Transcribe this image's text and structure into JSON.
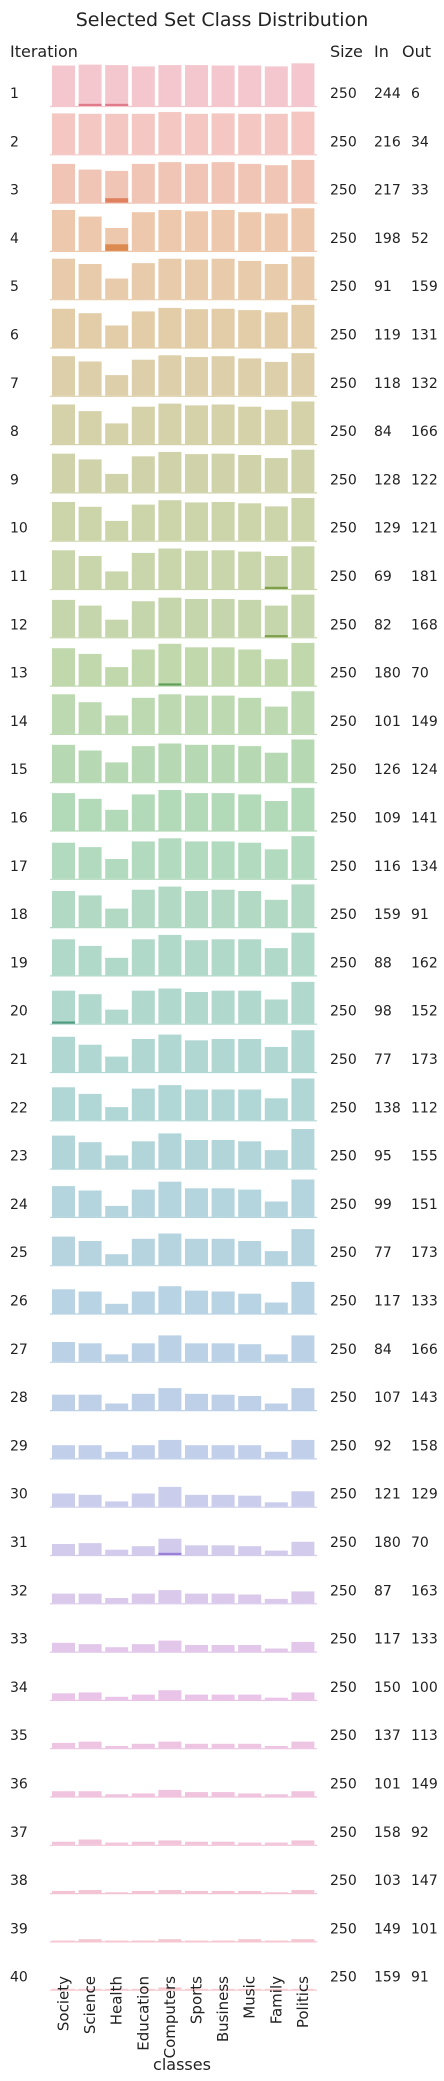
{
  "chart_data": {
    "type": "bar",
    "title": "Selected Set Class Distribution",
    "xlabel": "classes",
    "ylabel": "Iteration",
    "headers": {
      "size": "Size",
      "in": "In",
      "out": "Out"
    },
    "categories": [
      "Society",
      "Science",
      "Health",
      "Education",
      "Computers",
      "Sports",
      "Business",
      "Music",
      "Family",
      "Politics"
    ],
    "ylim": [
      0,
      1
    ],
    "iterations": [
      {
        "label": "1",
        "size": 250,
        "in": 244,
        "out": 6,
        "color": "#f4c7cf",
        "values": [
          0.92,
          0.94,
          0.93,
          0.9,
          0.93,
          0.93,
          0.92,
          0.92,
          0.9,
          0.97
        ]
      },
      {
        "label": "2",
        "size": 250,
        "in": 216,
        "out": 34,
        "color": "#f4c7c3",
        "values": [
          0.93,
          0.92,
          0.92,
          0.92,
          0.96,
          0.92,
          0.93,
          0.92,
          0.92,
          0.97
        ]
      },
      {
        "label": "3",
        "size": 250,
        "in": 217,
        "out": 33,
        "color": "#f1c5b6",
        "values": [
          0.88,
          0.75,
          0.72,
          0.88,
          0.92,
          0.88,
          0.92,
          0.88,
          0.85,
          0.97
        ]
      },
      {
        "label": "4",
        "size": 250,
        "in": 198,
        "out": 52,
        "color": "#edc8ac",
        "values": [
          0.93,
          0.78,
          0.52,
          0.88,
          0.93,
          0.9,
          0.93,
          0.88,
          0.85,
          0.97
        ]
      },
      {
        "label": "5",
        "size": 250,
        "in": 91,
        "out": 159,
        "color": "#e8cbaa",
        "values": [
          0.92,
          0.8,
          0.47,
          0.82,
          0.92,
          0.9,
          0.92,
          0.87,
          0.8,
          0.97
        ]
      },
      {
        "label": "6",
        "size": 250,
        "in": 119,
        "out": 131,
        "color": "#e2cda8",
        "values": [
          0.88,
          0.78,
          0.5,
          0.82,
          0.9,
          0.87,
          0.88,
          0.85,
          0.8,
          0.97
        ]
      },
      {
        "label": "7",
        "size": 250,
        "in": 118,
        "out": 132,
        "color": "#dccfa9",
        "values": [
          0.9,
          0.78,
          0.47,
          0.82,
          0.92,
          0.88,
          0.9,
          0.85,
          0.77,
          0.97
        ]
      },
      {
        "label": "8",
        "size": 250,
        "in": 84,
        "out": 166,
        "color": "#d5d1a9",
        "values": [
          0.9,
          0.75,
          0.47,
          0.85,
          0.92,
          0.88,
          0.9,
          0.85,
          0.78,
          0.97
        ]
      },
      {
        "label": "9",
        "size": 250,
        "in": 128,
        "out": 122,
        "color": "#d0d3a9",
        "values": [
          0.88,
          0.75,
          0.42,
          0.82,
          0.92,
          0.87,
          0.88,
          0.85,
          0.78,
          0.97
        ]
      },
      {
        "label": "10",
        "size": 250,
        "in": 129,
        "out": 121,
        "color": "#ccd4aa",
        "values": [
          0.88,
          0.77,
          0.45,
          0.82,
          0.92,
          0.87,
          0.88,
          0.85,
          0.78,
          0.97
        ]
      },
      {
        "label": "11",
        "size": 250,
        "in": 69,
        "out": 181,
        "color": "#c9d5ab",
        "values": [
          0.88,
          0.75,
          0.4,
          0.82,
          0.92,
          0.87,
          0.88,
          0.85,
          0.75,
          0.97
        ]
      },
      {
        "label": "12",
        "size": 250,
        "in": 82,
        "out": 168,
        "color": "#c5d6ac",
        "values": [
          0.85,
          0.72,
          0.4,
          0.82,
          0.9,
          0.87,
          0.87,
          0.85,
          0.72,
          0.97
        ]
      },
      {
        "label": "13",
        "size": 250,
        "in": 180,
        "out": 70,
        "color": "#c1d8ad",
        "values": [
          0.85,
          0.72,
          0.42,
          0.82,
          0.95,
          0.87,
          0.87,
          0.82,
          0.6,
          0.97
        ]
      },
      {
        "label": "14",
        "size": 250,
        "in": 101,
        "out": 149,
        "color": "#bcd9b1",
        "values": [
          0.9,
          0.72,
          0.42,
          0.82,
          0.9,
          0.87,
          0.87,
          0.82,
          0.62,
          0.97
        ]
      },
      {
        "label": "15",
        "size": 250,
        "in": 126,
        "out": 124,
        "color": "#b6d9b4",
        "values": [
          0.85,
          0.72,
          0.45,
          0.82,
          0.88,
          0.85,
          0.85,
          0.82,
          0.67,
          0.97
        ]
      },
      {
        "label": "16",
        "size": 250,
        "in": 109,
        "out": 141,
        "color": "#b3dab8",
        "values": [
          0.85,
          0.72,
          0.47,
          0.82,
          0.92,
          0.85,
          0.85,
          0.82,
          0.67,
          0.97
        ]
      },
      {
        "label": "17",
        "size": 250,
        "in": 116,
        "out": 134,
        "color": "#b2dabe",
        "values": [
          0.82,
          0.72,
          0.45,
          0.85,
          0.92,
          0.85,
          0.85,
          0.82,
          0.67,
          0.97
        ]
      },
      {
        "label": "18",
        "size": 250,
        "in": 159,
        "out": 91,
        "color": "#b1d9c4",
        "values": [
          0.82,
          0.72,
          0.42,
          0.85,
          0.92,
          0.82,
          0.85,
          0.82,
          0.62,
          0.97
        ]
      },
      {
        "label": "19",
        "size": 250,
        "in": 88,
        "out": 162,
        "color": "#b0d9c9",
        "values": [
          0.82,
          0.67,
          0.4,
          0.82,
          0.92,
          0.8,
          0.82,
          0.82,
          0.62,
          0.97
        ]
      },
      {
        "label": "20",
        "size": 250,
        "in": 98,
        "out": 152,
        "color": "#b0d8cd",
        "values": [
          0.75,
          0.67,
          0.32,
          0.75,
          0.8,
          0.72,
          0.75,
          0.75,
          0.55,
          0.95
        ]
      },
      {
        "label": "21",
        "size": 250,
        "in": 77,
        "out": 173,
        "color": "#b0d7d1",
        "values": [
          0.8,
          0.62,
          0.35,
          0.75,
          0.85,
          0.72,
          0.75,
          0.75,
          0.57,
          0.95
        ]
      },
      {
        "label": "22",
        "size": 250,
        "in": 138,
        "out": 112,
        "color": "#b1d6d6",
        "values": [
          0.75,
          0.6,
          0.3,
          0.72,
          0.8,
          0.7,
          0.7,
          0.7,
          0.5,
          0.95
        ]
      },
      {
        "label": "23",
        "size": 250,
        "in": 95,
        "out": 155,
        "color": "#b2d5da",
        "values": [
          0.75,
          0.6,
          0.3,
          0.62,
          0.8,
          0.65,
          0.65,
          0.62,
          0.42,
          0.9
        ]
      },
      {
        "label": "24",
        "size": 250,
        "in": 99,
        "out": 151,
        "color": "#b4d5de",
        "values": [
          0.7,
          0.6,
          0.25,
          0.62,
          0.8,
          0.65,
          0.65,
          0.62,
          0.35,
          0.85
        ]
      },
      {
        "label": "25",
        "size": 250,
        "in": 77,
        "out": 173,
        "color": "#b6d4e0",
        "values": [
          0.65,
          0.55,
          0.25,
          0.6,
          0.72,
          0.6,
          0.6,
          0.55,
          0.32,
          0.82
        ]
      },
      {
        "label": "26",
        "size": 250,
        "in": 117,
        "out": 133,
        "color": "#b8d3e3",
        "values": [
          0.55,
          0.5,
          0.22,
          0.5,
          0.62,
          0.52,
          0.5,
          0.45,
          0.25,
          0.72
        ]
      },
      {
        "label": "27",
        "size": 250,
        "in": 84,
        "out": 166,
        "color": "#bbd2e6",
        "values": [
          0.45,
          0.42,
          0.17,
          0.42,
          0.6,
          0.42,
          0.42,
          0.4,
          0.17,
          0.6
        ]
      },
      {
        "label": "28",
        "size": 250,
        "in": 107,
        "out": 143,
        "color": "#bdd0e8",
        "values": [
          0.35,
          0.35,
          0.15,
          0.37,
          0.5,
          0.37,
          0.35,
          0.32,
          0.15,
          0.5
        ]
      },
      {
        "label": "29",
        "size": 250,
        "in": 92,
        "out": 158,
        "color": "#c2cfea",
        "values": [
          0.3,
          0.3,
          0.15,
          0.3,
          0.42,
          0.3,
          0.3,
          0.3,
          0.15,
          0.42
        ]
      },
      {
        "label": "30",
        "size": 250,
        "in": 121,
        "out": 129,
        "color": "#cacdeb",
        "values": [
          0.3,
          0.27,
          0.12,
          0.3,
          0.45,
          0.27,
          0.27,
          0.25,
          0.1,
          0.35
        ]
      },
      {
        "label": "31",
        "size": 250,
        "in": 180,
        "out": 70,
        "color": "#d2cbec",
        "values": [
          0.25,
          0.27,
          0.12,
          0.2,
          0.37,
          0.22,
          0.22,
          0.2,
          0.1,
          0.3
        ]
      },
      {
        "label": "32",
        "size": 250,
        "in": 87,
        "out": 163,
        "color": "#dbc9ec",
        "values": [
          0.22,
          0.22,
          0.12,
          0.22,
          0.3,
          0.22,
          0.22,
          0.2,
          0.1,
          0.27
        ]
      },
      {
        "label": "33",
        "size": 250,
        "in": 117,
        "out": 133,
        "color": "#e3c7eb",
        "values": [
          0.2,
          0.17,
          0.1,
          0.17,
          0.25,
          0.15,
          0.15,
          0.15,
          0.07,
          0.22
        ]
      },
      {
        "label": "34",
        "size": 250,
        "in": 150,
        "out": 100,
        "color": "#eac4e8",
        "values": [
          0.15,
          0.17,
          0.07,
          0.12,
          0.22,
          0.12,
          0.12,
          0.12,
          0.05,
          0.17
        ]
      },
      {
        "label": "35",
        "size": 250,
        "in": 137,
        "out": 113,
        "color": "#eec4e3",
        "values": [
          0.12,
          0.15,
          0.05,
          0.1,
          0.15,
          0.1,
          0.1,
          0.1,
          0.05,
          0.15
        ]
      },
      {
        "label": "36",
        "size": 250,
        "in": 101,
        "out": 149,
        "color": "#f0c3de",
        "values": [
          0.12,
          0.12,
          0.05,
          0.07,
          0.15,
          0.1,
          0.1,
          0.07,
          0.05,
          0.12
        ]
      },
      {
        "label": "37",
        "size": 250,
        "in": 158,
        "out": 92,
        "color": "#f2c4d9",
        "values": [
          0.07,
          0.12,
          0.05,
          0.07,
          0.1,
          0.07,
          0.07,
          0.05,
          0.05,
          0.1
        ]
      },
      {
        "label": "38",
        "size": 250,
        "in": 103,
        "out": 147,
        "color": "#f3c5d4",
        "values": [
          0.05,
          0.07,
          0.02,
          0.05,
          0.07,
          0.05,
          0.05,
          0.05,
          0.02,
          0.07
        ]
      },
      {
        "label": "39",
        "size": 250,
        "in": 149,
        "out": 101,
        "color": "#f4c6d0",
        "values": [
          0.02,
          0.05,
          0.02,
          0.02,
          0.05,
          0.02,
          0.02,
          0.05,
          0.02,
          0.05
        ]
      },
      {
        "label": "40",
        "size": 250,
        "in": 159,
        "out": 91,
        "color": "#f5c7cd",
        "values": [
          0.02,
          0.02,
          0.02,
          0.02,
          0.05,
          0.02,
          0.02,
          0.02,
          0.02,
          0.02
        ]
      }
    ],
    "highlights": [
      {
        "iteration": 1,
        "category": "Science",
        "value": 0.05,
        "color": "#e07b8e"
      },
      {
        "iteration": 1,
        "category": "Health",
        "value": 0.05,
        "color": "#e07b8e"
      },
      {
        "iteration": 3,
        "category": "Health",
        "value": 0.1,
        "color": "#e0805f"
      },
      {
        "iteration": 4,
        "category": "Health",
        "value": 0.15,
        "color": "#dd8a50"
      },
      {
        "iteration": 11,
        "category": "Family",
        "value": 0.05,
        "color": "#7fa04a"
      },
      {
        "iteration": 12,
        "category": "Family",
        "value": 0.05,
        "color": "#7fa04a"
      },
      {
        "iteration": 13,
        "category": "Computers",
        "value": 0.05,
        "color": "#5fa05a"
      },
      {
        "iteration": 20,
        "category": "Society",
        "value": 0.05,
        "color": "#4f9a80"
      },
      {
        "iteration": 31,
        "category": "Computers",
        "value": 0.05,
        "color": "#9a7fd6"
      }
    ]
  }
}
